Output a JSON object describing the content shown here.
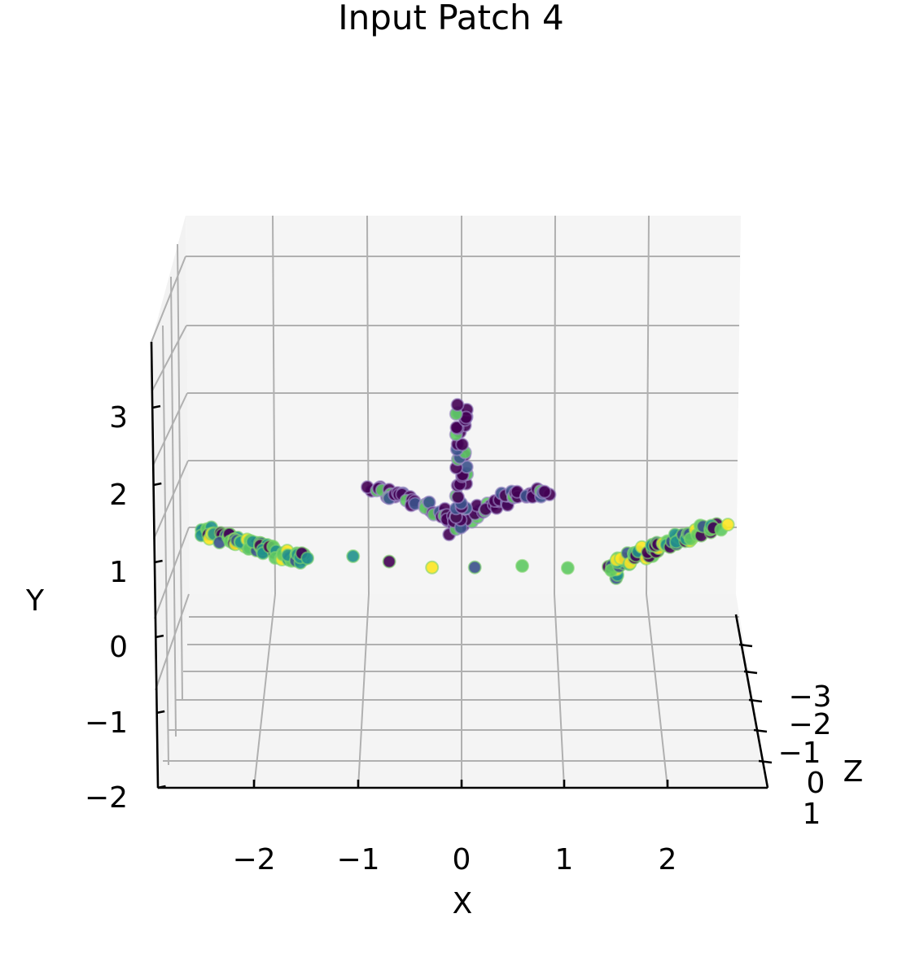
{
  "chart_data": {
    "type": "scatter",
    "projection": "3d",
    "title": "Input Patch 4",
    "xlabel": "X",
    "ylabel": "Y",
    "zlabel": "Z",
    "x_ticks": [
      "−2",
      "−1",
      "0",
      "1",
      "2"
    ],
    "y_ticks": [
      "−2",
      "−1",
      "0",
      "1",
      "2",
      "3"
    ],
    "z_ticks": [
      "−3",
      "−2",
      "−1",
      "0",
      "1"
    ],
    "xlim": [
      -2.9,
      2.9
    ],
    "ylim": [
      -2,
      3.6
    ],
    "zlim": [
      -4,
      1
    ],
    "grid": true,
    "colormap": "viridis",
    "colormap_stops": [
      "#440154",
      "#3b528b",
      "#21918c",
      "#5ec962",
      "#fde725"
    ],
    "series": [
      {
        "points": [
          {
            "x": -2.67,
            "y": 1.55
          },
          {
            "x": -2.55,
            "y": 1.5
          },
          {
            "x": -2.45,
            "y": 1.45
          },
          {
            "x": -2.35,
            "y": 1.42
          },
          {
            "x": -2.25,
            "y": 1.38
          },
          {
            "x": -2.15,
            "y": 1.34
          },
          {
            "x": -2.05,
            "y": 1.3
          },
          {
            "x": -1.95,
            "y": 1.27
          },
          {
            "x": -1.85,
            "y": 1.23
          },
          {
            "x": -1.75,
            "y": 1.2
          },
          {
            "x": -1.68,
            "y": 1.18
          },
          {
            "x": -1.62,
            "y": 1.17
          },
          {
            "x": 1.55,
            "y": 0.98
          },
          {
            "x": 1.6,
            "y": 1.12
          },
          {
            "x": 1.7,
            "y": 1.16
          },
          {
            "x": 1.8,
            "y": 1.2
          },
          {
            "x": 1.9,
            "y": 1.25
          },
          {
            "x": 2.0,
            "y": 1.3
          },
          {
            "x": 2.1,
            "y": 1.35
          },
          {
            "x": 2.2,
            "y": 1.4
          },
          {
            "x": 2.3,
            "y": 1.45
          },
          {
            "x": 2.4,
            "y": 1.5
          },
          {
            "x": 2.55,
            "y": 1.55
          },
          {
            "x": 2.72,
            "y": 1.6
          }
        ]
      },
      {
        "points": [
          {
            "x": -0.95,
            "y": 2.1
          },
          {
            "x": -0.8,
            "y": 2.05
          },
          {
            "x": -0.65,
            "y": 2.0
          },
          {
            "x": -0.5,
            "y": 1.95
          },
          {
            "x": -0.35,
            "y": 1.88
          },
          {
            "x": -0.2,
            "y": 1.78
          },
          {
            "x": -0.1,
            "y": 1.66
          },
          {
            "x": 0.05,
            "y": 1.68
          },
          {
            "x": 0.2,
            "y": 1.82
          },
          {
            "x": 0.35,
            "y": 1.92
          },
          {
            "x": 0.5,
            "y": 1.98
          },
          {
            "x": 0.65,
            "y": 2.02
          },
          {
            "x": 0.8,
            "y": 2.05
          },
          {
            "x": 0.93,
            "y": 2.08
          }
        ]
      },
      {
        "points": [
          {
            "x": -0.1,
            "y": 1.52
          },
          {
            "x": 0.0,
            "y": 1.8
          },
          {
            "x": 0.0,
            "y": 2.1
          },
          {
            "x": 0.0,
            "y": 2.4
          },
          {
            "x": 0.0,
            "y": 2.7
          },
          {
            "x": 0.0,
            "y": 3.0
          },
          {
            "x": 0.0,
            "y": 3.2
          }
        ]
      }
    ]
  }
}
